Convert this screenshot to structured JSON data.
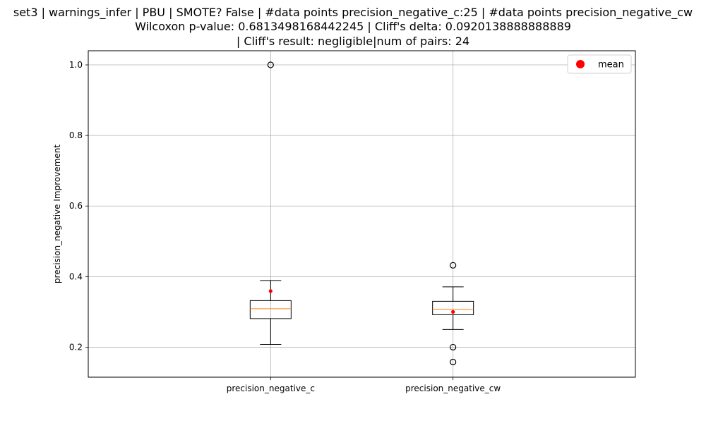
{
  "chart_data": {
    "type": "box",
    "title_lines": [
      "set3 | warnings_infer | PBU | SMOTE? False | #data points precision_negative_c:25 | #data points precision_negative_cw",
      "Wilcoxon p-value: 0.6813498168442245 | Cliff's delta: 0.0920138888888889",
      "| Cliff's result: negligible|num of pairs: 24"
    ],
    "ylabel": "precision_negative Improvement",
    "ylim": [
      0.115,
      1.04
    ],
    "yticks": [
      0.2,
      0.4,
      0.6,
      0.8,
      1.0
    ],
    "ytick_labels": [
      "0.2",
      "0.4",
      "0.6",
      "0.8",
      "1.0"
    ],
    "grid": true,
    "legend": {
      "placement": "top-right",
      "entries": [
        {
          "label": "mean",
          "color": "#ff0000",
          "marker": "circle"
        }
      ]
    },
    "categories": [
      "precision_negative_c",
      "precision_negative_cw"
    ],
    "boxes": [
      {
        "name": "precision_negative_c",
        "whisker_low": 0.208,
        "q1": 0.281,
        "median": 0.309,
        "q3": 0.332,
        "whisker_high": 0.389,
        "mean": 0.359,
        "outliers": [
          1.0
        ]
      },
      {
        "name": "precision_negative_cw",
        "whisker_low": 0.25,
        "q1": 0.292,
        "median": 0.307,
        "q3": 0.33,
        "whisker_high": 0.371,
        "mean": 0.3,
        "outliers": [
          0.432,
          0.2,
          0.158
        ]
      }
    ],
    "colors": {
      "box": "#000000",
      "median": "#ff7f0e",
      "mean": "#ff0000",
      "grid": "#b0b0b0"
    }
  }
}
